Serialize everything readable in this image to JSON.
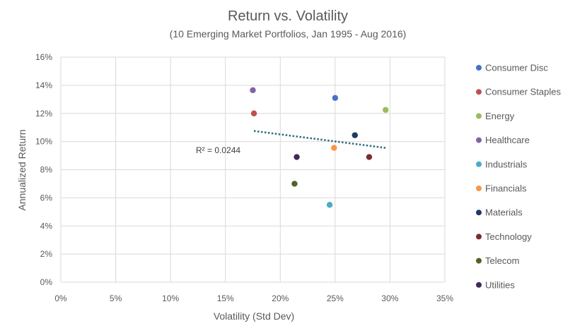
{
  "chart_data": {
    "type": "scatter",
    "title": "Return vs. Volatility",
    "subtitle": "(10 Emerging Market Portfolios, Jan 1995 - Aug 2016)",
    "xlabel": "Volatility (Std Dev)",
    "ylabel": "Annualized Return",
    "xlim": [
      0,
      35
    ],
    "ylim": [
      0,
      16
    ],
    "x_ticks": [
      0,
      5,
      10,
      15,
      20,
      25,
      30,
      35
    ],
    "x_tick_labels": [
      "0%",
      "5%",
      "10%",
      "15%",
      "20%",
      "25%",
      "30%",
      "35%"
    ],
    "y_ticks": [
      0,
      2,
      4,
      6,
      8,
      10,
      12,
      14,
      16
    ],
    "y_tick_labels": [
      "0%",
      "2%",
      "4%",
      "6%",
      "8%",
      "10%",
      "12%",
      "14%",
      "16%"
    ],
    "grid": "vertical and horizontal",
    "legend_position": "right",
    "series": [
      {
        "name": "Consumer Disc",
        "color": "#4472C4",
        "x": 25.0,
        "y": 13.1
      },
      {
        "name": "Consumer Staples",
        "color": "#C0504D",
        "x": 17.6,
        "y": 12.0
      },
      {
        "name": "Energy",
        "color": "#9BBB59",
        "x": 29.6,
        "y": 12.25
      },
      {
        "name": "Healthcare",
        "color": "#8064A2",
        "x": 17.5,
        "y": 13.65
      },
      {
        "name": "Industrials",
        "color": "#4BACC6",
        "x": 24.5,
        "y": 5.5
      },
      {
        "name": "Financials",
        "color": "#F79646",
        "x": 24.9,
        "y": 9.55
      },
      {
        "name": "Materials",
        "color": "#1F3864",
        "x": 26.8,
        "y": 10.45
      },
      {
        "name": "Technology",
        "color": "#7B2C2C",
        "x": 28.1,
        "y": 8.9
      },
      {
        "name": "Telecom",
        "color": "#4F6228",
        "x": 21.3,
        "y": 7.0
      },
      {
        "name": "Utilities",
        "color": "#3F2A5A",
        "x": 21.5,
        "y": 8.9
      }
    ],
    "trendline": {
      "type": "linear",
      "style": "dotted",
      "color": "#2E6F7E",
      "x": [
        17.6,
        29.6
      ],
      "y": [
        10.75,
        9.55
      ],
      "r_squared_label": "R² = 0.0244"
    }
  }
}
